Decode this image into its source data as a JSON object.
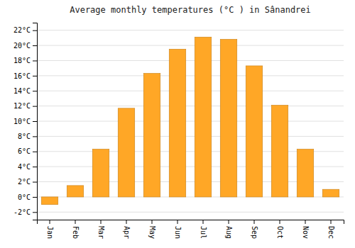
{
  "chart_data": {
    "type": "bar",
    "title": "Average monthly temperatures (°C ) in Sânandrei",
    "categories": [
      "Jan",
      "Feb",
      "Mar",
      "Apr",
      "May",
      "Jun",
      "Jul",
      "Aug",
      "Sep",
      "Oct",
      "Nov",
      "Dec"
    ],
    "values": [
      -1.0,
      1.5,
      6.3,
      11.7,
      16.3,
      19.5,
      21.1,
      20.8,
      17.3,
      12.1,
      6.3,
      1.0
    ],
    "color": "#FFA726",
    "ylim": [
      -3,
      23
    ],
    "yticks": [
      {
        "value": -2,
        "label": "-2°C"
      },
      {
        "value": 0,
        "label": "0°C"
      },
      {
        "value": 2,
        "label": "2°C"
      },
      {
        "value": 4,
        "label": "4°C"
      },
      {
        "value": 6,
        "label": "6°C"
      },
      {
        "value": 8,
        "label": "8°C"
      },
      {
        "value": 10,
        "label": "10°C"
      },
      {
        "value": 12,
        "label": "12°C"
      },
      {
        "value": 14,
        "label": "14°C"
      },
      {
        "value": 16,
        "label": "16°C"
      },
      {
        "value": 18,
        "label": "18°C"
      },
      {
        "value": 20,
        "label": "20°C"
      },
      {
        "value": 22,
        "label": "22°C"
      }
    ],
    "grid": true
  }
}
